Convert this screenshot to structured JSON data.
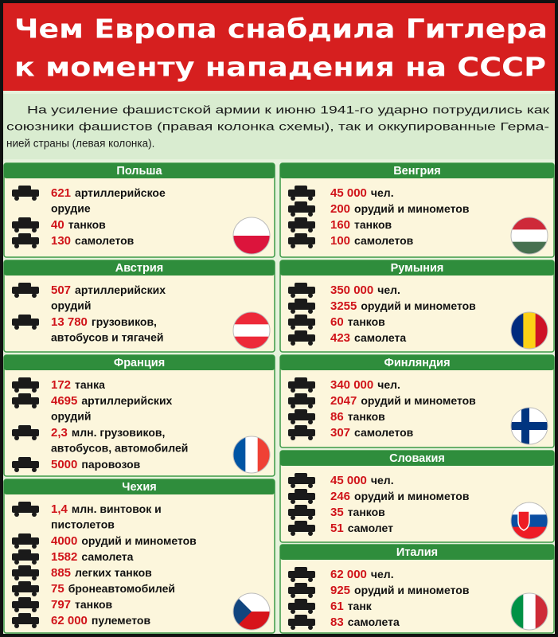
{
  "header": {
    "title": [
      "Чем Европа снабдила Гитлера",
      "к моменту нападения на СССР"
    ]
  },
  "intro": [
    "На усиление фашистской армии к июню 1941-го ударно потрудились как",
    "союзники фашистов (правая колонка схемы), так и оккупированные Герма-",
    "нией страны (левая колонка)."
  ],
  "columns": [
    {
      "sections": [
        {
          "title": "Польша",
          "items": [
            {
              "value": "621",
              "text": [
                "артиллерийское",
                "орудие"
              ]
            },
            {
              "value": "40",
              "text": [
                "танков"
              ]
            },
            {
              "value": "130",
              "text": [
                "самолетов"
              ]
            }
          ]
        },
        {
          "title": "Австрия",
          "items": [
            {
              "value": "507",
              "text": [
                "артиллерийских",
                "орудий"
              ]
            },
            {
              "value": "13 780",
              "text": [
                "грузовиков,",
                "автобусов и тягачей"
              ]
            }
          ]
        },
        {
          "title": "Франция",
          "items": [
            {
              "value": "172",
              "text": [
                "танка"
              ]
            },
            {
              "value": "4695",
              "text": [
                "артиллерийских",
                "орудий"
              ]
            },
            {
              "value": "2,3",
              "text": [
                "млн. грузовиков,",
                "автобусов, автомобилей"
              ]
            },
            {
              "value": "5000",
              "text": [
                "паровозов"
              ]
            }
          ]
        },
        {
          "title": "Чехия",
          "items": [
            {
              "value": "1,4",
              "text": [
                "млн. винтовок и",
                "пистолетов"
              ]
            },
            {
              "value": "4000",
              "text": [
                "орудий и минометов"
              ]
            },
            {
              "value": "1582",
              "text": [
                "самолета"
              ]
            },
            {
              "value": "885",
              "text": [
                "легких танков"
              ]
            },
            {
              "value": "75",
              "text": [
                "бронеавтомобилей"
              ]
            },
            {
              "value": "797",
              "text": [
                "танков"
              ]
            },
            {
              "value": "62 000",
              "text": [
                "пулеметов"
              ]
            }
          ]
        }
      ]
    },
    {
      "sections": [
        {
          "title": "Венгрия",
          "items": [
            {
              "value": "45 000",
              "text": [
                "чел."
              ]
            },
            {
              "value": "200",
              "text": [
                "орудий и минометов"
              ]
            },
            {
              "value": "160",
              "text": [
                "танков"
              ]
            },
            {
              "value": "100",
              "text": [
                "самолетов"
              ]
            }
          ]
        },
        {
          "title": "Румыния",
          "items": [
            {
              "value": "350 000",
              "text": [
                "чел."
              ]
            },
            {
              "value": "3255",
              "text": [
                "орудий и минометов"
              ]
            },
            {
              "value": "60",
              "text": [
                "танков"
              ]
            },
            {
              "value": "423",
              "text": [
                "самолета"
              ]
            }
          ]
        },
        {
          "title": "Финляндия",
          "items": [
            {
              "value": "340 000",
              "text": [
                "чел."
              ]
            },
            {
              "value": "2047",
              "text": [
                "орудий и минометов"
              ]
            },
            {
              "value": "86",
              "text": [
                "танков"
              ]
            },
            {
              "value": "307",
              "text": [
                "самолетов"
              ]
            }
          ]
        },
        {
          "title": "Словакия",
          "items": [
            {
              "value": "45 000",
              "text": [
                "чел."
              ]
            },
            {
              "value": "246",
              "text": [
                "орудий и минометов"
              ]
            },
            {
              "value": "35",
              "text": [
                "танков"
              ]
            },
            {
              "value": "51",
              "text": [
                "самолет"
              ]
            }
          ]
        },
        {
          "title": "Италия",
          "items": [
            {
              "value": "62 000",
              "text": [
                "чел."
              ]
            },
            {
              "value": "925",
              "text": [
                "орудий и минометов"
              ]
            },
            {
              "value": "61",
              "text": [
                "танк"
              ]
            },
            {
              "value": "83",
              "text": [
                "самолета"
              ]
            }
          ]
        }
      ]
    }
  ]
}
